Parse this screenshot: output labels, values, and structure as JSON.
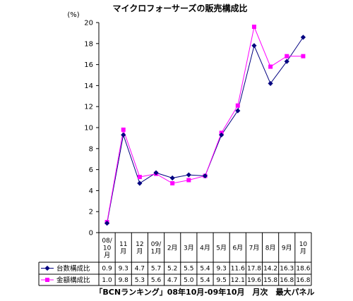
{
  "chart_data": {
    "type": "line",
    "title": "マイクロフォーサーズの販売構成比",
    "unit_label": "(%)",
    "categories": [
      [
        "08/",
        "10",
        "月"
      ],
      [
        "11",
        "月"
      ],
      [
        "12",
        "月"
      ],
      [
        "09/",
        "1月"
      ],
      [
        "2月"
      ],
      [
        "3月"
      ],
      [
        "4月"
      ],
      [
        "5月"
      ],
      [
        "6月"
      ],
      [
        "7月"
      ],
      [
        "8月"
      ],
      [
        "9月"
      ],
      [
        "10",
        "月"
      ]
    ],
    "ylim": [
      0,
      20
    ],
    "yticks": [
      0,
      2,
      4,
      6,
      8,
      10,
      12,
      14,
      16,
      18,
      20
    ],
    "series": [
      {
        "name": "台数構成比",
        "color": "#000080",
        "marker": "diamond",
        "values": [
          0.9,
          9.3,
          4.7,
          5.7,
          5.2,
          5.5,
          5.4,
          9.3,
          11.6,
          17.8,
          14.2,
          16.3,
          18.6
        ],
        "labels": [
          "0.9",
          "9.3",
          "4.7",
          "5.7",
          "5.2",
          "5.5",
          "5.4",
          "9.3",
          "11.6",
          "17.8",
          "14.2",
          "16.3",
          "18.6"
        ]
      },
      {
        "name": "金額構成比",
        "color": "#ff00ff",
        "marker": "square",
        "values": [
          1.0,
          9.8,
          5.3,
          5.6,
          4.7,
          5.0,
          5.4,
          9.5,
          12.1,
          19.6,
          15.8,
          16.8,
          16.8
        ],
        "labels": [
          "1.0",
          "9.8",
          "5.3",
          "5.6",
          "4.7",
          "5.0",
          "5.4",
          "9.5",
          "12.1",
          "19.6",
          "15.8",
          "16.8",
          "16.8"
        ]
      }
    ],
    "grid": false,
    "legend": "data-table"
  },
  "source_note": "「BCNランキング」08年10月-09年10月　月次　最大パネル"
}
